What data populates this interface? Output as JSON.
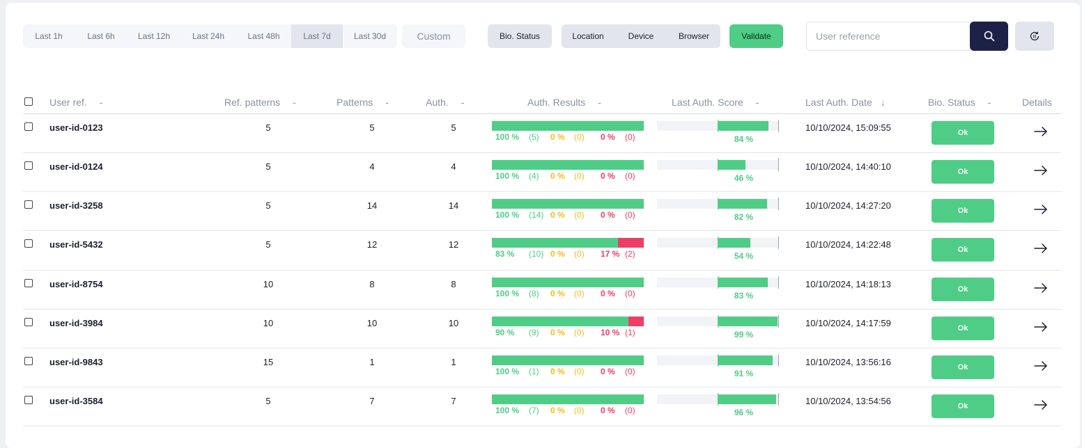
{
  "time_filters": [
    {
      "label": "Last 1h",
      "active": false
    },
    {
      "label": "Last 6h",
      "active": false
    },
    {
      "label": "Last 12h",
      "active": false
    },
    {
      "label": "Last 24h",
      "active": false
    },
    {
      "label": "Last 48h",
      "active": false
    },
    {
      "label": "Last 7d",
      "active": true
    },
    {
      "label": "Last 30d",
      "active": false
    }
  ],
  "toolbar": {
    "custom_label": "Custom",
    "bio_status_label": "Bio. Status",
    "location_label": "Location",
    "device_label": "Device",
    "browser_label": "Browser",
    "validate_label": "Validate",
    "search_placeholder": "User reference",
    "search_value": "",
    "search_icon": "search-icon",
    "reset_icon": "reset-icon"
  },
  "table": {
    "columns": {
      "user_ref": "User ref.",
      "ref_patterns": "Ref. patterns",
      "patterns": "Patterns",
      "auth": "Auth.",
      "auth_results": "Auth. Results",
      "last_score": "Last Auth. Score",
      "last_date": "Last Auth. Date",
      "bio_status": "Bio. Status",
      "details": "Details",
      "sort_dash": "-",
      "sort_arrow": "↓"
    },
    "rows": [
      {
        "user_ref": "user-id-0123",
        "ref_patterns": "5",
        "patterns": "5",
        "auth": "5",
        "ok_pct": "100 %",
        "ok_count": "(5)",
        "warn_pct": "0 %",
        "warn_count": "(0)",
        "fail_pct": "0 %",
        "fail_count": "(0)",
        "ok_ratio": 100,
        "fail_ratio": 0,
        "score": 84,
        "score_text": "84 %",
        "date": "10/10/2024, 15:09:55",
        "status": "Ok"
      },
      {
        "user_ref": "user-id-0124",
        "ref_patterns": "5",
        "patterns": "4",
        "auth": "4",
        "ok_pct": "100 %",
        "ok_count": "(4)",
        "warn_pct": "0 %",
        "warn_count": "(0)",
        "fail_pct": "0 %",
        "fail_count": "(0)",
        "ok_ratio": 100,
        "fail_ratio": 0,
        "score": 46,
        "score_text": "46 %",
        "date": "10/10/2024, 14:40:10",
        "status": "Ok"
      },
      {
        "user_ref": "user-id-3258",
        "ref_patterns": "5",
        "patterns": "14",
        "auth": "14",
        "ok_pct": "100 %",
        "ok_count": "(14)",
        "warn_pct": "0 %",
        "warn_count": "(0)",
        "fail_pct": "0 %",
        "fail_count": "(0)",
        "ok_ratio": 100,
        "fail_ratio": 0,
        "score": 82,
        "score_text": "82 %",
        "date": "10/10/2024, 14:27:20",
        "status": "Ok"
      },
      {
        "user_ref": "user-id-5432",
        "ref_patterns": "5",
        "patterns": "12",
        "auth": "12",
        "ok_pct": "83 %",
        "ok_count": "(10)",
        "warn_pct": "0 %",
        "warn_count": "(0)",
        "fail_pct": "17 %",
        "fail_count": "(2)",
        "ok_ratio": 83,
        "fail_ratio": 17,
        "score": 54,
        "score_text": "54 %",
        "date": "10/10/2024, 14:22:48",
        "status": "Ok"
      },
      {
        "user_ref": "user-id-8754",
        "ref_patterns": "10",
        "patterns": "8",
        "auth": "8",
        "ok_pct": "100 %",
        "ok_count": "(8)",
        "warn_pct": "0 %",
        "warn_count": "(0)",
        "fail_pct": "0 %",
        "fail_count": "(0)",
        "ok_ratio": 100,
        "fail_ratio": 0,
        "score": 83,
        "score_text": "83 %",
        "date": "10/10/2024, 14:18:13",
        "status": "Ok"
      },
      {
        "user_ref": "user-id-3984",
        "ref_patterns": "10",
        "patterns": "10",
        "auth": "10",
        "ok_pct": "90 %",
        "ok_count": "(9)",
        "warn_pct": "0 %",
        "warn_count": "(0)",
        "fail_pct": "10 %",
        "fail_count": "(1)",
        "ok_ratio": 90,
        "fail_ratio": 10,
        "score": 99,
        "score_text": "99 %",
        "date": "10/10/2024, 14:17:59",
        "status": "Ok"
      },
      {
        "user_ref": "user-id-9843",
        "ref_patterns": "15",
        "patterns": "1",
        "auth": "1",
        "ok_pct": "100 %",
        "ok_count": "(1)",
        "warn_pct": "0 %",
        "warn_count": "(0)",
        "fail_pct": "0 %",
        "fail_count": "(0)",
        "ok_ratio": 100,
        "fail_ratio": 0,
        "score": 91,
        "score_text": "91 %",
        "date": "10/10/2024, 13:56:16",
        "status": "Ok"
      },
      {
        "user_ref": "user-id-3584",
        "ref_patterns": "5",
        "patterns": "7",
        "auth": "7",
        "ok_pct": "100 %",
        "ok_count": "(7)",
        "warn_pct": "0 %",
        "warn_count": "(0)",
        "fail_pct": "0 %",
        "fail_count": "(0)",
        "ok_ratio": 100,
        "fail_ratio": 0,
        "score": 96,
        "score_text": "96 %",
        "date": "10/10/2024, 13:54:56",
        "status": "Ok"
      }
    ]
  },
  "colors": {
    "success": "#4fcd86",
    "warning": "#f5bc1c",
    "danger": "#ef3e65",
    "primary_dark": "#1e2147"
  }
}
